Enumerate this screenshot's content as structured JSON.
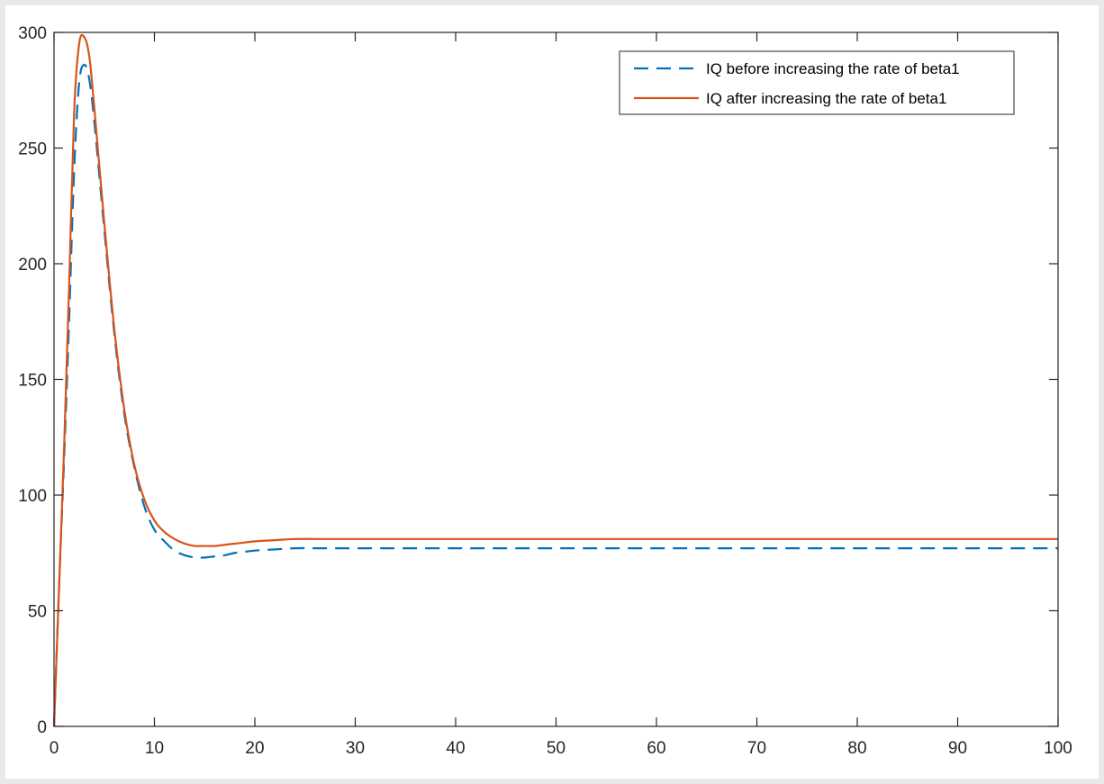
{
  "chart_data": {
    "type": "line",
    "title": "",
    "xlabel": "",
    "ylabel": "",
    "xlim": [
      0,
      100
    ],
    "ylim": [
      0,
      300
    ],
    "xticks": [
      0,
      10,
      20,
      30,
      40,
      50,
      60,
      70,
      80,
      90,
      100
    ],
    "yticks": [
      0,
      50,
      100,
      150,
      200,
      250,
      300
    ],
    "grid": false,
    "legend_position": "top-right",
    "series": [
      {
        "name": "IQ before increasing the rate of beta1",
        "color": "#0072BD",
        "line_style": "dashed",
        "x": [
          0,
          0.5,
          1,
          1.5,
          2,
          2.5,
          3,
          3.5,
          4,
          5,
          6,
          7,
          8,
          9,
          10,
          11,
          12,
          13,
          14,
          15,
          16,
          17,
          18,
          19,
          20,
          22,
          24,
          26,
          28,
          30,
          40,
          50,
          60,
          70,
          80,
          90,
          100
        ],
        "y": [
          0,
          60,
          115,
          175,
          240,
          278,
          286,
          280,
          262,
          215,
          170,
          135,
          112,
          95,
          85,
          80,
          76,
          74,
          73,
          73,
          73.5,
          74,
          75,
          75.5,
          76,
          76.5,
          77,
          77,
          77,
          77,
          77,
          77,
          77,
          77,
          77,
          77,
          77
        ]
      },
      {
        "name": "IQ after increasing the rate of beta1",
        "color": "#D95319",
        "line_style": "solid",
        "x": [
          0,
          0.5,
          1,
          1.5,
          2,
          2.5,
          3,
          3.5,
          4,
          5,
          6,
          7,
          8,
          9,
          10,
          11,
          12,
          13,
          14,
          15,
          16,
          17,
          18,
          19,
          20,
          22,
          24,
          26,
          28,
          30,
          40,
          50,
          60,
          70,
          80,
          90,
          100
        ],
        "y": [
          0,
          60,
          120,
          190,
          265,
          295,
          298,
          290,
          268,
          218,
          172,
          137,
          113,
          98,
          89,
          84,
          81,
          79,
          78,
          78,
          78,
          78.5,
          79,
          79.5,
          80,
          80.5,
          81,
          81,
          81,
          81,
          81,
          81,
          81,
          81,
          81,
          81,
          81
        ]
      }
    ]
  }
}
